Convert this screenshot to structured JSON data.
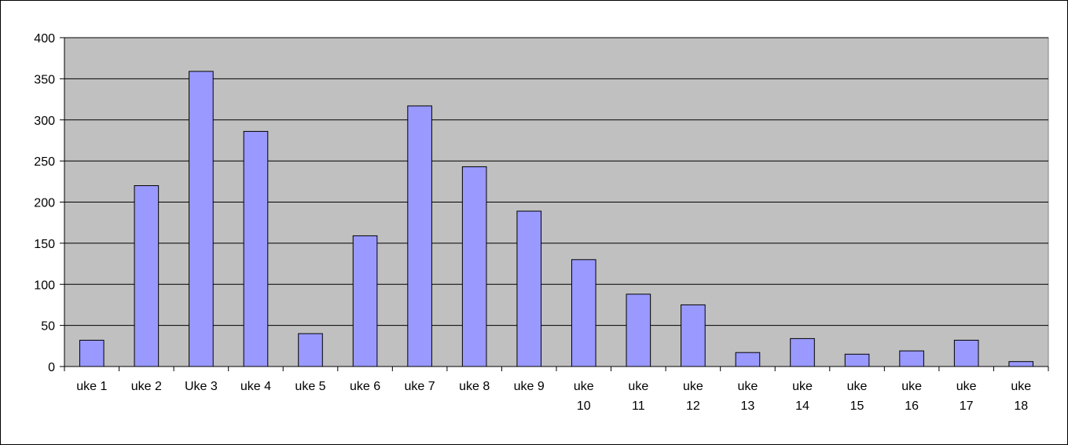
{
  "chart_data": {
    "type": "bar",
    "title": "",
    "xlabel": "",
    "ylabel": "",
    "categories": [
      [
        "uke 1"
      ],
      [
        "uke 2"
      ],
      [
        "Uke 3"
      ],
      [
        "uke 4"
      ],
      [
        "uke 5"
      ],
      [
        "uke 6"
      ],
      [
        "uke 7"
      ],
      [
        "uke 8"
      ],
      [
        "uke 9"
      ],
      [
        "uke",
        "10"
      ],
      [
        "uke",
        "11"
      ],
      [
        "uke",
        "12"
      ],
      [
        "uke",
        "13"
      ],
      [
        "uke",
        "14"
      ],
      [
        "uke",
        "15"
      ],
      [
        "uke",
        "16"
      ],
      [
        "uke",
        "17"
      ],
      [
        "uke",
        "18"
      ]
    ],
    "values": [
      32,
      220,
      359,
      286,
      40,
      159,
      317,
      243,
      189,
      130,
      88,
      75,
      17,
      34,
      15,
      19,
      32,
      6
    ],
    "ylim": [
      0,
      400
    ],
    "yticks": [
      0,
      50,
      100,
      150,
      200,
      250,
      300,
      350,
      400
    ],
    "grid": true,
    "legend": "none",
    "colors": {
      "bar_fill": "#9999ff",
      "bar_stroke": "#000000",
      "plot_background": "#c0c0c0",
      "gridline": "#000000"
    }
  }
}
